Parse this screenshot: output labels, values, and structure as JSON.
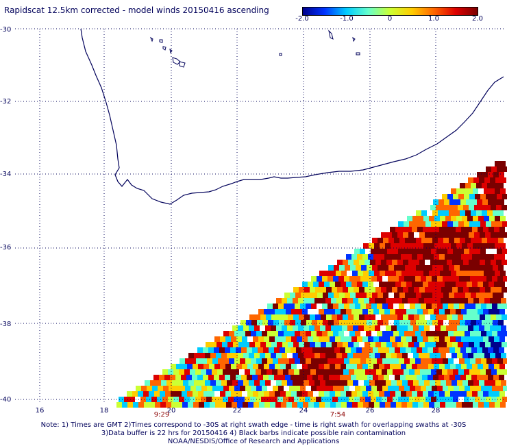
{
  "title": "Rapidscat 12.5km corrected - model winds 20150416 ascending",
  "colorbar": {
    "labels": [
      "-2.0",
      "-1.0",
      "0",
      "1.0",
      "2.0"
    ],
    "stops": [
      "#00008b",
      "#0033ff",
      "#00ccff",
      "#66ffcc",
      "#ccff33",
      "#ffcc00",
      "#ff6600",
      "#dd0000",
      "#7a0000"
    ]
  },
  "axes": {
    "lat_labels": [
      "-30",
      "-32",
      "-34",
      "-36",
      "-38",
      "-40"
    ],
    "lon_labels": [
      "16",
      "18",
      "20",
      "22",
      "24",
      "26",
      "28"
    ]
  },
  "time_labels": [
    "9:29",
    "7:54"
  ],
  "notes": [
    "Note: 1) Times are GMT 2)Times correspond to -30S at right swath edge - time is right swath for overlapping swaths at -30S",
    "3)Data buffer is 22 hrs for 20150416 4) Black barbs indicate possible rain contamination",
    "NOAA/NESDIS/Office of Research and Applications"
  ],
  "colors": {
    "coastline": "#00005a",
    "grid": "#00005a",
    "time": "#8b0000"
  }
}
